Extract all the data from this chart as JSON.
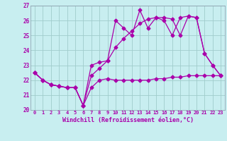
{
  "xlabel": "Windchill (Refroidissement éolien,°C)",
  "bg_color": "#c8eef0",
  "line_color": "#aa00aa",
  "grid_color": "#a0cccc",
  "xmin": -0.5,
  "xmax": 23.5,
  "ymin": 20,
  "ymax": 27,
  "yticks": [
    20,
    21,
    22,
    23,
    24,
    25,
    26,
    27
  ],
  "xticks": [
    0,
    1,
    2,
    3,
    4,
    5,
    6,
    7,
    8,
    9,
    10,
    11,
    12,
    13,
    14,
    15,
    16,
    17,
    18,
    19,
    20,
    21,
    22,
    23
  ],
  "line1_x": [
    0,
    1,
    2,
    3,
    4,
    5,
    6,
    7,
    8,
    9,
    10,
    11,
    12,
    13,
    14,
    15,
    16,
    17,
    18,
    19,
    20,
    21,
    22,
    23
  ],
  "line1_y": [
    22.5,
    22.0,
    21.7,
    21.6,
    21.5,
    21.5,
    20.3,
    23.0,
    23.2,
    23.3,
    26.0,
    25.5,
    25.0,
    26.7,
    25.5,
    26.2,
    26.2,
    26.1,
    25.0,
    26.3,
    26.2,
    23.8,
    23.0,
    22.3
  ],
  "line2_x": [
    0,
    1,
    2,
    3,
    4,
    5,
    6,
    7,
    8,
    9,
    10,
    11,
    12,
    13,
    14,
    15,
    16,
    17,
    18,
    19,
    20,
    21,
    22,
    23
  ],
  "line2_y": [
    22.5,
    22.0,
    21.7,
    21.6,
    21.5,
    21.5,
    20.3,
    21.5,
    22.0,
    22.1,
    22.0,
    22.0,
    22.0,
    22.0,
    22.0,
    22.1,
    22.1,
    22.2,
    22.2,
    22.3,
    22.3,
    22.3,
    22.3,
    22.3
  ],
  "line3_x": [
    0,
    1,
    2,
    3,
    4,
    5,
    6,
    7,
    8,
    9,
    10,
    11,
    12,
    13,
    14,
    15,
    16,
    17,
    18,
    19,
    20,
    21,
    22,
    23
  ],
  "line3_y": [
    22.5,
    22.0,
    21.7,
    21.6,
    21.5,
    21.5,
    20.3,
    22.3,
    22.8,
    23.3,
    24.2,
    24.8,
    25.3,
    25.8,
    26.1,
    26.2,
    26.0,
    25.0,
    26.2,
    26.3,
    26.2,
    23.8,
    23.0,
    22.3
  ]
}
